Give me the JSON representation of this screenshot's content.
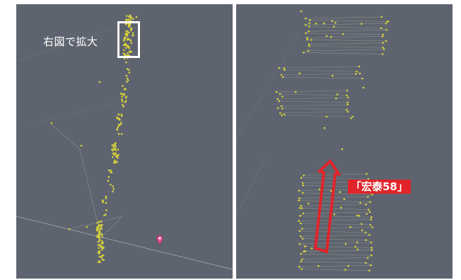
{
  "left_panel": {
    "zoom_callout": "右図で拡大"
  },
  "right_panel": {
    "vessel_label": "「宏泰58」"
  },
  "colors": {
    "background": "#5e646f",
    "track_points": "#d8d23a",
    "track_lines": "#8a8e86",
    "highlight_arrow": "#e0242a",
    "zoom_box": "#ffffff",
    "marker": "#e0559a"
  },
  "icons": {
    "location_marker": "map-pin-icon"
  }
}
